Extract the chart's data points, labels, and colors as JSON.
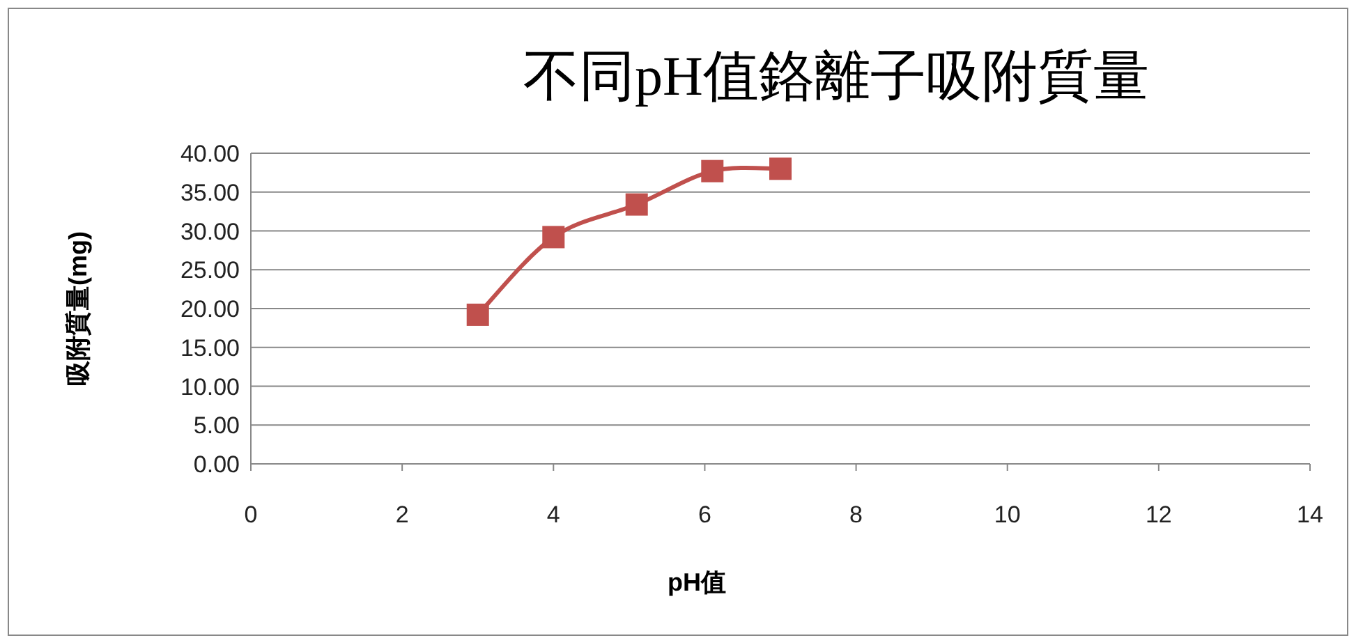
{
  "chart_data": {
    "type": "line",
    "title": "不同pH值鉻離子吸附質量",
    "xlabel": "pH值",
    "ylabel": "吸附質量(mg)",
    "x": [
      3,
      4,
      5.1,
      6.1,
      7
    ],
    "series": [
      {
        "color": "#c0504d",
        "values": [
          19.2,
          29.2,
          33.4,
          37.7,
          38.0
        ]
      }
    ],
    "xlim": [
      0,
      14
    ],
    "xticks": [
      0,
      2,
      4,
      6,
      8,
      10,
      12,
      14
    ],
    "ylim": [
      0,
      40
    ],
    "yticks": [
      {
        "value": 0,
        "label": "0.00"
      },
      {
        "value": 5,
        "label": "5.00"
      },
      {
        "value": 10,
        "label": "10.00"
      },
      {
        "value": 15,
        "label": "15.00"
      },
      {
        "value": 20,
        "label": "20.00"
      },
      {
        "value": 25,
        "label": "25.00"
      },
      {
        "value": 30,
        "label": "30.00"
      },
      {
        "value": 35,
        "label": "35.00"
      },
      {
        "value": 40,
        "label": "40.00"
      }
    ],
    "grid": "y",
    "marker": "square"
  }
}
